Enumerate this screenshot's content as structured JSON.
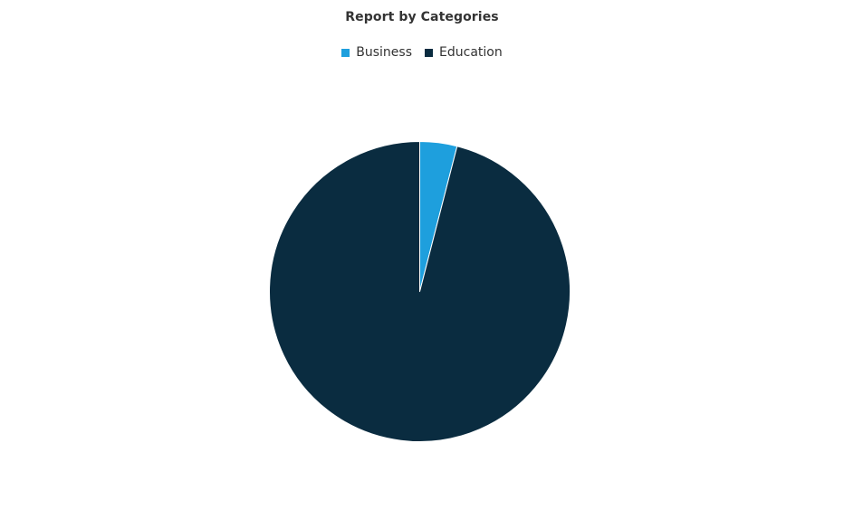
{
  "chart_data": {
    "type": "pie",
    "title": "Report by Categories",
    "legend_position": "top-center",
    "series": [
      {
        "name": "Business",
        "value": 4,
        "color": "#1e9fdd"
      },
      {
        "name": "Education",
        "value": 96,
        "color": "#0a2c40"
      }
    ],
    "slice_border_color": "#ffffff"
  }
}
